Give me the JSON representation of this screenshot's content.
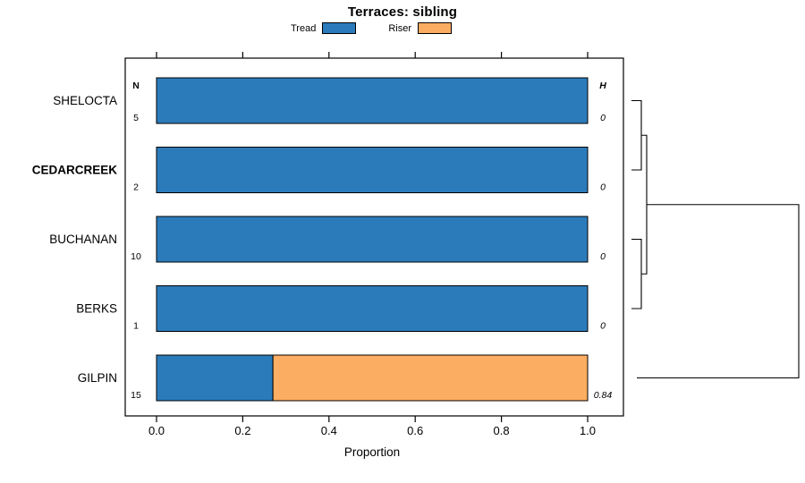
{
  "chart_data": {
    "type": "bar",
    "orientation": "horizontal-stacked",
    "title": "Terraces: sibling",
    "xlabel": "Proportion",
    "xlim": [
      0,
      1
    ],
    "xticks": [
      0,
      0.2,
      0.4,
      0.6,
      0.8,
      1
    ],
    "xtick_labels": [
      "0.0",
      "0.2",
      "0.4",
      "0.6",
      "0.8",
      "1.0"
    ],
    "grid": false,
    "legend_position": "top",
    "categories": [
      "SHELOCTA",
      "CEDARCREEK",
      "BUCHANAN",
      "BERKS",
      "GILPIN"
    ],
    "bold_category": "CEDARCREEK",
    "n_header": "N",
    "h_header": "H",
    "n_values": [
      "5",
      "2",
      "10",
      "1",
      "15"
    ],
    "h_values": [
      "0",
      "0",
      "0",
      "0",
      "0.84"
    ],
    "series": [
      {
        "name": "Tread",
        "color": "#2B7BBA",
        "values": [
          1,
          1,
          1,
          1,
          0.27
        ]
      },
      {
        "name": "Riser",
        "color": "#FBAD61",
        "values": [
          0,
          0,
          0,
          0,
          0.73
        ]
      }
    ],
    "legend": [
      {
        "label": "Tread",
        "color": "#2B7BBA"
      },
      {
        "label": "Riser",
        "color": "#FBAD61"
      }
    ],
    "dendrogram": {
      "present": true,
      "side": "right",
      "merges": [
        {
          "members": [
            "SHELOCTA",
            "CEDARCREEK"
          ],
          "height": 0
        },
        {
          "members": [
            "BUCHANAN",
            "BERKS"
          ],
          "height": 0
        },
        {
          "members": [
            "SHELOCTA+CEDARCREEK",
            "BUCHANAN+BERKS"
          ],
          "height": 0.02
        },
        {
          "members": [
            "upper-cluster",
            "GILPIN"
          ],
          "height": 0.84
        }
      ]
    }
  }
}
